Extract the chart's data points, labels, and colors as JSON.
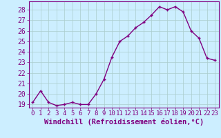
{
  "x": [
    0,
    1,
    2,
    3,
    4,
    5,
    6,
    7,
    8,
    9,
    10,
    11,
    12,
    13,
    14,
    15,
    16,
    17,
    18,
    19,
    20,
    21,
    22,
    23
  ],
  "y": [
    19.2,
    20.3,
    19.2,
    18.9,
    19.0,
    19.2,
    19.0,
    19.0,
    20.0,
    21.4,
    23.5,
    25.0,
    25.5,
    26.3,
    26.8,
    27.5,
    28.3,
    28.0,
    28.3,
    27.8,
    26.0,
    25.3,
    23.4,
    23.2
  ],
  "line_color": "#800080",
  "marker": "+",
  "bg_color": "#cceeff",
  "grid_color": "#aacccc",
  "xlabel": "Windchill (Refroidissement éolien,°C)",
  "ylabel": "",
  "ylim_min": 18.7,
  "ylim_max": 28.8,
  "xlim_min": -0.5,
  "xlim_max": 23.5,
  "yticks": [
    19,
    20,
    21,
    22,
    23,
    24,
    25,
    26,
    27,
    28
  ],
  "xticks": [
    0,
    1,
    2,
    3,
    4,
    5,
    6,
    7,
    8,
    9,
    10,
    11,
    12,
    13,
    14,
    15,
    16,
    17,
    18,
    19,
    20,
    21,
    22,
    23
  ],
  "axis_color": "#800080",
  "tick_color": "#800080",
  "label_color": "#800080",
  "font_size_xlabel": 7.5,
  "font_size_ytick": 7,
  "font_size_xtick": 6.5,
  "line_width": 1.0,
  "marker_size": 3.5,
  "marker_edge_width": 1.0
}
